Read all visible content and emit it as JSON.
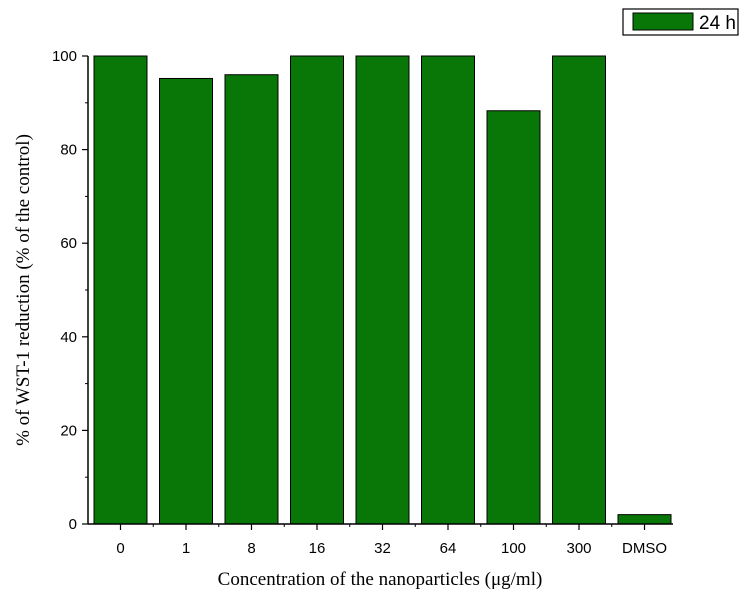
{
  "chart_data": {
    "type": "bar",
    "categories": [
      "0",
      "1",
      "8",
      "16",
      "32",
      "64",
      "100",
      "300",
      "DMSO"
    ],
    "series": [
      {
        "name": "24 h",
        "values": [
          100,
          95.2,
          96,
          100,
          100,
          100,
          88.3,
          100,
          2
        ],
        "color": "#087708"
      }
    ],
    "xlabel": "Concentration of the nanoparticles (μg/ml)",
    "ylabel": "% of WST-1 reduction (% of the control)",
    "ylim": [
      0,
      100
    ],
    "yticks": [
      "0",
      "20",
      "40",
      "60",
      "80",
      "100"
    ],
    "grid": false,
    "legend_position": "top-right"
  }
}
